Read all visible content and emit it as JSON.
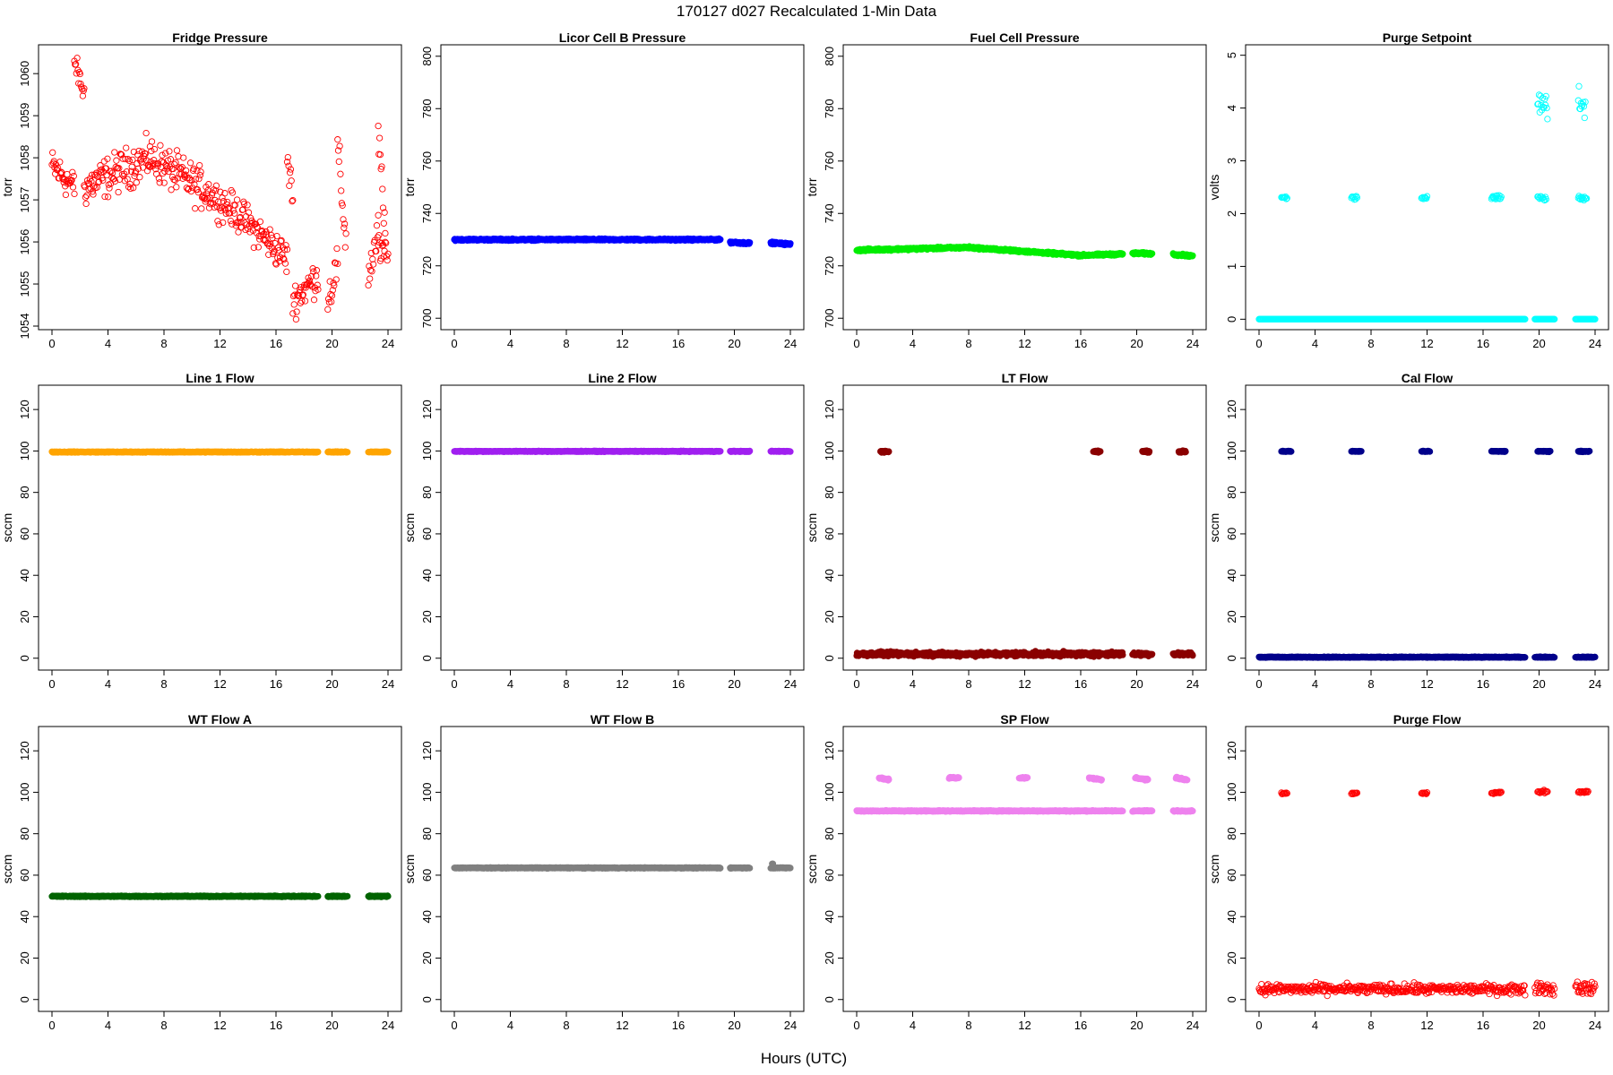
{
  "figure": {
    "title": "170127   d027   Recalculated 1-Min Data",
    "xlabel": "Hours (UTC)"
  },
  "chart_data": [
    {
      "type": "scatter",
      "title": "Fridge Pressure",
      "ylabel": "torr",
      "xlim": [
        0,
        24
      ],
      "ylim": [
        1054,
        1060.6
      ],
      "xticks": [
        0,
        4,
        8,
        12,
        16,
        20,
        24
      ],
      "yticks": [
        1054,
        1055,
        1056,
        1057,
        1058,
        1059,
        1060
      ],
      "series": [
        {
          "color": "#ff0000",
          "marker": "open-circle",
          "segments": [
            {
              "x0": 0,
              "x1": 1.6,
              "y0": 1057.8,
              "y1": 1057.3,
              "noise": 0.6
            },
            {
              "x0": 1.6,
              "x1": 2.3,
              "y0": 1060.3,
              "y1": 1059.5,
              "noise": 0.4
            },
            {
              "x0": 2.3,
              "x1": 7.0,
              "y0": 1057.3,
              "y1": 1058.0,
              "noise": 0.7
            },
            {
              "x0": 7.0,
              "x1": 11.0,
              "y0": 1058.0,
              "y1": 1057.2,
              "noise": 0.7
            },
            {
              "x0": 11.0,
              "x1": 13.5,
              "y0": 1057.2,
              "y1": 1056.6,
              "noise": 0.6
            },
            {
              "x0": 13.5,
              "x1": 16.8,
              "y0": 1056.6,
              "y1": 1055.6,
              "noise": 0.6
            },
            {
              "x0": 16.8,
              "x1": 17.2,
              "y0": 1058.0,
              "y1": 1057.0,
              "noise": 0.6
            },
            {
              "x0": 17.2,
              "x1": 19.0,
              "y0": 1054.6,
              "y1": 1055.2,
              "noise": 0.6
            },
            {
              "x0": 19.7,
              "x1": 20.4,
              "y0": 1054.6,
              "y1": 1055.5,
              "noise": 0.7
            },
            {
              "x0": 20.4,
              "x1": 21.0,
              "y0": 1058.2,
              "y1": 1056.0,
              "noise": 0.8
            },
            {
              "x0": 22.6,
              "x1": 23.3,
              "y0": 1055.2,
              "y1": 1056.2,
              "noise": 0.7
            },
            {
              "x0": 23.3,
              "x1": 23.8,
              "y0": 1058.7,
              "y1": 1056.0,
              "noise": 0.8
            },
            {
              "x0": 23.3,
              "x1": 24.0,
              "y0": 1056.0,
              "y1": 1055.6,
              "noise": 0.6
            }
          ]
        }
      ]
    },
    {
      "type": "scatter",
      "title": "Licor Cell B Pressure",
      "ylabel": "torr",
      "xlim": [
        0,
        24
      ],
      "ylim": [
        697,
        803
      ],
      "xticks": [
        0,
        4,
        8,
        12,
        16,
        20,
        24
      ],
      "yticks": [
        700,
        720,
        740,
        760,
        780,
        800
      ],
      "series": [
        {
          "color": "#0000ff",
          "marker": "filled-circle",
          "segments": [
            {
              "x0": 0,
              "x1": 19.0,
              "y0": 730,
              "y1": 730,
              "noise": 0.5
            },
            {
              "x0": 19.7,
              "x1": 21.1,
              "y0": 729,
              "y1": 728.6,
              "noise": 0.6
            },
            {
              "x0": 22.6,
              "x1": 24.0,
              "y0": 728.8,
              "y1": 728.2,
              "noise": 0.6
            }
          ]
        }
      ]
    },
    {
      "type": "scatter",
      "title": "Fuel Cell Pressure",
      "ylabel": "torr",
      "xlim": [
        0,
        24
      ],
      "ylim": [
        697,
        803
      ],
      "xticks": [
        0,
        4,
        8,
        12,
        16,
        20,
        24
      ],
      "yticks": [
        700,
        720,
        740,
        760,
        780,
        800
      ],
      "series": [
        {
          "color": "#00ee00",
          "marker": "filled-circle",
          "segments": [
            {
              "x0": 0,
              "x1": 8.0,
              "y0": 726,
              "y1": 727,
              "noise": 0.6
            },
            {
              "x0": 8.0,
              "x1": 16.0,
              "y0": 727,
              "y1": 724,
              "noise": 0.6
            },
            {
              "x0": 16.0,
              "x1": 19.0,
              "y0": 724,
              "y1": 724.5,
              "noise": 0.6
            },
            {
              "x0": 19.7,
              "x1": 21.1,
              "y0": 724.8,
              "y1": 724.6,
              "noise": 0.6
            },
            {
              "x0": 22.6,
              "x1": 24.0,
              "y0": 724.4,
              "y1": 723.8,
              "noise": 0.6
            }
          ]
        }
      ]
    },
    {
      "type": "scatter",
      "title": "Purge Setpoint",
      "ylabel": "volts",
      "xlim": [
        0,
        24
      ],
      "ylim": [
        -0.13,
        5.13
      ],
      "xticks": [
        0,
        4,
        8,
        12,
        16,
        20,
        24
      ],
      "yticks": [
        0,
        1,
        2,
        3,
        4,
        5
      ],
      "series": [
        {
          "color": "#00ffff",
          "marker": "open-circle",
          "segments": [
            {
              "x0": 0,
              "x1": 19.0,
              "y0": 0,
              "y1": 0,
              "noise": 0
            },
            {
              "x0": 19.7,
              "x1": 21.1,
              "y0": 0,
              "y1": 0,
              "noise": 0
            },
            {
              "x0": 22.6,
              "x1": 24.0,
              "y0": 0,
              "y1": 0,
              "noise": 0
            },
            {
              "x0": 1.6,
              "x1": 2.0,
              "y0": 2.3,
              "y1": 2.3,
              "noise": 0.04
            },
            {
              "x0": 6.6,
              "x1": 7.0,
              "y0": 2.3,
              "y1": 2.3,
              "noise": 0.06
            },
            {
              "x0": 11.6,
              "x1": 12.0,
              "y0": 2.3,
              "y1": 2.3,
              "noise": 0.04
            },
            {
              "x0": 16.6,
              "x1": 17.3,
              "y0": 2.3,
              "y1": 2.3,
              "noise": 0.06
            },
            {
              "x0": 19.9,
              "x1": 20.5,
              "y0": 2.3,
              "y1": 2.3,
              "noise": 0.06
            },
            {
              "x0": 22.8,
              "x1": 23.4,
              "y0": 2.3,
              "y1": 2.3,
              "noise": 0.06
            },
            {
              "x0": 19.9,
              "x1": 20.6,
              "y0": 4.1,
              "y1": 4.0,
              "noise": 0.35
            },
            {
              "x0": 22.8,
              "x1": 23.3,
              "y0": 4.2,
              "y1": 4.0,
              "noise": 0.35
            }
          ]
        }
      ]
    },
    {
      "type": "scatter",
      "title": "Line 1 Flow",
      "ylabel": "sccm",
      "xlim": [
        0,
        24
      ],
      "ylim": [
        -4,
        130
      ],
      "xticks": [
        0,
        4,
        8,
        12,
        16,
        20,
        24
      ],
      "yticks": [
        0,
        20,
        40,
        60,
        80,
        100,
        120
      ],
      "series": [
        {
          "color": "#ffa500",
          "marker": "filled-circle",
          "segments": [
            {
              "x0": 0,
              "x1": 19.0,
              "y0": 99.5,
              "y1": 99.5,
              "noise": 0.3
            },
            {
              "x0": 19.7,
              "x1": 21.1,
              "y0": 99.5,
              "y1": 99.5,
              "noise": 0.3
            },
            {
              "x0": 22.6,
              "x1": 24.0,
              "y0": 99.5,
              "y1": 99.5,
              "noise": 0.3
            }
          ]
        }
      ]
    },
    {
      "type": "scatter",
      "title": "Line 2 Flow",
      "ylabel": "sccm",
      "xlim": [
        0,
        24
      ],
      "ylim": [
        -4,
        130
      ],
      "xticks": [
        0,
        4,
        8,
        12,
        16,
        20,
        24
      ],
      "yticks": [
        0,
        20,
        40,
        60,
        80,
        100,
        120
      ],
      "series": [
        {
          "color": "#a020f0",
          "marker": "filled-circle",
          "segments": [
            {
              "x0": 0,
              "x1": 19.0,
              "y0": 99.8,
              "y1": 99.8,
              "noise": 0.3
            },
            {
              "x0": 19.7,
              "x1": 21.1,
              "y0": 99.8,
              "y1": 99.8,
              "noise": 0.3
            },
            {
              "x0": 22.6,
              "x1": 24.0,
              "y0": 99.8,
              "y1": 99.8,
              "noise": 0.3
            }
          ]
        }
      ]
    },
    {
      "type": "scatter",
      "title": "LT Flow",
      "ylabel": "sccm",
      "xlim": [
        0,
        24
      ],
      "ylim": [
        -4,
        130
      ],
      "xticks": [
        0,
        4,
        8,
        12,
        16,
        20,
        24
      ],
      "yticks": [
        0,
        20,
        40,
        60,
        80,
        100,
        120
      ],
      "series": [
        {
          "color": "#8b0000",
          "marker": "filled-circle",
          "segments": [
            {
              "x0": 0,
              "x1": 19.0,
              "y0": 2,
              "y1": 2,
              "noise": 1.5
            },
            {
              "x0": 19.7,
              "x1": 21.1,
              "y0": 2,
              "y1": 2,
              "noise": 1.2
            },
            {
              "x0": 22.6,
              "x1": 24.0,
              "y0": 2,
              "y1": 2,
              "noise": 1.2
            },
            {
              "x0": 1.7,
              "x1": 2.3,
              "y0": 99.7,
              "y1": 99.7,
              "noise": 0.6
            },
            {
              "x0": 16.9,
              "x1": 17.4,
              "y0": 99.7,
              "y1": 99.7,
              "noise": 0.6
            },
            {
              "x0": 20.4,
              "x1": 20.9,
              "y0": 99.7,
              "y1": 99.7,
              "noise": 0.6
            },
            {
              "x0": 23.0,
              "x1": 23.5,
              "y0": 99.7,
              "y1": 99.7,
              "noise": 0.6
            }
          ]
        }
      ]
    },
    {
      "type": "scatter",
      "title": "Cal Flow",
      "ylabel": "sccm",
      "xlim": [
        0,
        24
      ],
      "ylim": [
        -4,
        130
      ],
      "xticks": [
        0,
        4,
        8,
        12,
        16,
        20,
        24
      ],
      "yticks": [
        0,
        20,
        40,
        60,
        80,
        100,
        120
      ],
      "series": [
        {
          "color": "#00008b",
          "marker": "filled-circle",
          "segments": [
            {
              "x0": 0,
              "x1": 19.0,
              "y0": 0.5,
              "y1": 0.5,
              "noise": 0.3
            },
            {
              "x0": 19.7,
              "x1": 21.1,
              "y0": 0.5,
              "y1": 0.5,
              "noise": 0.3
            },
            {
              "x0": 22.6,
              "x1": 24.0,
              "y0": 0.5,
              "y1": 0.5,
              "noise": 0.3
            },
            {
              "x0": 1.6,
              "x1": 2.3,
              "y0": 99.8,
              "y1": 99.8,
              "noise": 0.3
            },
            {
              "x0": 6.6,
              "x1": 7.3,
              "y0": 99.8,
              "y1": 99.8,
              "noise": 0.3
            },
            {
              "x0": 11.6,
              "x1": 12.2,
              "y0": 99.8,
              "y1": 99.8,
              "noise": 0.3
            },
            {
              "x0": 16.6,
              "x1": 17.6,
              "y0": 99.8,
              "y1": 99.8,
              "noise": 0.3
            },
            {
              "x0": 19.9,
              "x1": 20.8,
              "y0": 99.8,
              "y1": 99.8,
              "noise": 0.3
            },
            {
              "x0": 22.8,
              "x1": 23.6,
              "y0": 99.8,
              "y1": 99.8,
              "noise": 0.3
            }
          ]
        }
      ]
    },
    {
      "type": "scatter",
      "title": "WT Flow A",
      "ylabel": "sccm",
      "xlim": [
        0,
        24
      ],
      "ylim": [
        -4,
        130
      ],
      "xticks": [
        0,
        4,
        8,
        12,
        16,
        20,
        24
      ],
      "yticks": [
        0,
        20,
        40,
        60,
        80,
        100,
        120
      ],
      "series": [
        {
          "color": "#006400",
          "marker": "filled-circle",
          "segments": [
            {
              "x0": 0,
              "x1": 19.0,
              "y0": 49.8,
              "y1": 49.8,
              "noise": 0.4
            },
            {
              "x0": 19.7,
              "x1": 21.1,
              "y0": 49.8,
              "y1": 49.8,
              "noise": 0.4
            },
            {
              "x0": 22.6,
              "x1": 24.0,
              "y0": 49.8,
              "y1": 49.8,
              "noise": 0.4
            }
          ]
        }
      ]
    },
    {
      "type": "scatter",
      "title": "WT Flow B",
      "ylabel": "sccm",
      "xlim": [
        0,
        24
      ],
      "ylim": [
        -4,
        130
      ],
      "xticks": [
        0,
        4,
        8,
        12,
        16,
        20,
        24
      ],
      "yticks": [
        0,
        20,
        40,
        60,
        80,
        100,
        120
      ],
      "series": [
        {
          "color": "#808080",
          "marker": "filled-circle",
          "segments": [
            {
              "x0": 0,
              "x1": 19.0,
              "y0": 63.5,
              "y1": 63.5,
              "noise": 0.3
            },
            {
              "x0": 19.7,
              "x1": 21.1,
              "y0": 63.5,
              "y1": 63.5,
              "noise": 0.3
            },
            {
              "x0": 22.6,
              "x1": 24.0,
              "y0": 63.5,
              "y1": 63.5,
              "noise": 0.3
            },
            {
              "x0": 22.7,
              "x1": 22.75,
              "y0": 65.5,
              "y1": 65.5,
              "noise": 0
            }
          ]
        }
      ]
    },
    {
      "type": "scatter",
      "title": "SP Flow",
      "ylabel": "sccm",
      "xlim": [
        0,
        24
      ],
      "ylim": [
        -4,
        130
      ],
      "xticks": [
        0,
        4,
        8,
        12,
        16,
        20,
        24
      ],
      "yticks": [
        0,
        20,
        40,
        60,
        80,
        100,
        120
      ],
      "series": [
        {
          "color": "#ee82ee",
          "marker": "filled-circle",
          "segments": [
            {
              "x0": 0,
              "x1": 19.0,
              "y0": 91,
              "y1": 91,
              "noise": 0.4
            },
            {
              "x0": 19.7,
              "x1": 21.1,
              "y0": 91,
              "y1": 91,
              "noise": 0.4
            },
            {
              "x0": 22.6,
              "x1": 24.0,
              "y0": 91,
              "y1": 91,
              "noise": 0.4
            },
            {
              "x0": 1.6,
              "x1": 2.3,
              "y0": 107,
              "y1": 106,
              "noise": 0.6
            },
            {
              "x0": 6.6,
              "x1": 7.3,
              "y0": 107,
              "y1": 107,
              "noise": 0.5
            },
            {
              "x0": 11.6,
              "x1": 12.2,
              "y0": 107,
              "y1": 107,
              "noise": 0.5
            },
            {
              "x0": 16.6,
              "x1": 17.5,
              "y0": 107,
              "y1": 106,
              "noise": 0.6
            },
            {
              "x0": 19.9,
              "x1": 20.8,
              "y0": 107,
              "y1": 106,
              "noise": 0.6
            },
            {
              "x0": 22.8,
              "x1": 23.6,
              "y0": 107,
              "y1": 106,
              "noise": 0.6
            }
          ]
        }
      ]
    },
    {
      "type": "scatter",
      "title": "Purge Flow",
      "ylabel": "sccm",
      "xlim": [
        0,
        24
      ],
      "ylim": [
        -4,
        130
      ],
      "xticks": [
        0,
        4,
        8,
        12,
        16,
        20,
        24
      ],
      "yticks": [
        0,
        20,
        40,
        60,
        80,
        100,
        120
      ],
      "series": [
        {
          "color": "#ff0000",
          "marker": "open-circle",
          "segments": [
            {
              "x0": 0,
              "x1": 19.0,
              "y0": 5,
              "y1": 5,
              "noise": 3.5
            },
            {
              "x0": 19.7,
              "x1": 21.1,
              "y0": 6,
              "y1": 5,
              "noise": 4.5
            },
            {
              "x0": 22.6,
              "x1": 24.0,
              "y0": 6,
              "y1": 5,
              "noise": 4.5
            },
            {
              "x0": 1.6,
              "x1": 2.0,
              "y0": 99.5,
              "y1": 99.5,
              "noise": 0.6
            },
            {
              "x0": 6.6,
              "x1": 7.0,
              "y0": 99.5,
              "y1": 99.5,
              "noise": 0.6
            },
            {
              "x0": 11.6,
              "x1": 12.0,
              "y0": 99.5,
              "y1": 99.5,
              "noise": 0.6
            },
            {
              "x0": 16.6,
              "x1": 17.3,
              "y0": 99.8,
              "y1": 99.8,
              "noise": 0.8
            },
            {
              "x0": 19.9,
              "x1": 20.6,
              "y0": 100.2,
              "y1": 100.2,
              "noise": 1.0
            },
            {
              "x0": 22.8,
              "x1": 23.5,
              "y0": 100.2,
              "y1": 100.2,
              "noise": 1.0
            }
          ]
        }
      ]
    }
  ]
}
